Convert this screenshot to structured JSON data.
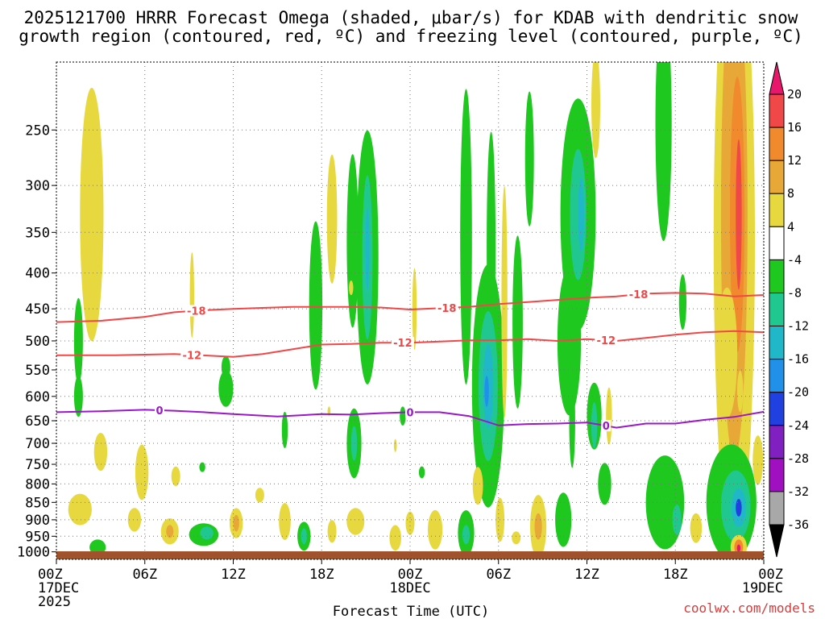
{
  "chart_data": {
    "type": "heatmap",
    "title_lines": [
      "2025121700 HRRR Forecast Omega (shaded, μbar/s) for KDAB with dendritic snow",
      "growth region (contoured, red, ºC) and freezing level (contoured, purple, ºC)"
    ],
    "xlabel": "Forecast Time (UTC)",
    "ylabel": "",
    "credit": "coolwx.com/models",
    "x_ticks": [
      {
        "hour": 0,
        "lines": [
          "00Z",
          "17DEC",
          "2025"
        ]
      },
      {
        "hour": 6,
        "lines": [
          "06Z"
        ]
      },
      {
        "hour": 12,
        "lines": [
          "12Z"
        ]
      },
      {
        "hour": 18,
        "lines": [
          "18Z"
        ]
      },
      {
        "hour": 24,
        "lines": [
          "00Z",
          "18DEC"
        ]
      },
      {
        "hour": 30,
        "lines": [
          "06Z"
        ]
      },
      {
        "hour": 36,
        "lines": [
          "12Z"
        ]
      },
      {
        "hour": 42,
        "lines": [
          "18Z"
        ]
      },
      {
        "hour": 48,
        "lines": [
          "00Z",
          "19DEC"
        ]
      }
    ],
    "xlim": [
      0,
      48
    ],
    "y_ticks": [
      250,
      300,
      350,
      400,
      450,
      500,
      550,
      600,
      650,
      700,
      750,
      800,
      850,
      900,
      950,
      1000
    ],
    "ylim_hpa": [
      1025,
      200
    ],
    "colorbar": {
      "labels": [
        20,
        16,
        12,
        8,
        4,
        -4,
        -8,
        -12,
        -16,
        -20,
        -24,
        -28,
        -32,
        -36
      ],
      "bins": [
        {
          "from": 20,
          "to": 24,
          "color": "#e8176b"
        },
        {
          "from": 16,
          "to": 20,
          "color": "#f04848"
        },
        {
          "from": 12,
          "to": 16,
          "color": "#f08a2c"
        },
        {
          "from": 8,
          "to": 12,
          "color": "#e8a838"
        },
        {
          "from": 4,
          "to": 8,
          "color": "#e8d840"
        },
        {
          "from": -4,
          "to": 4,
          "color": "#ffffff"
        },
        {
          "from": -8,
          "to": -4,
          "color": "#1ec81e"
        },
        {
          "from": -12,
          "to": -8,
          "color": "#20c890"
        },
        {
          "from": -16,
          "to": -12,
          "color": "#20b8c8"
        },
        {
          "from": -20,
          "to": -16,
          "color": "#2090e8"
        },
        {
          "from": -24,
          "to": -20,
          "color": "#2040e0"
        },
        {
          "from": -28,
          "to": -24,
          "color": "#8020c0"
        },
        {
          "from": -32,
          "to": -28,
          "color": "#a010c0"
        },
        {
          "from": -36,
          "to": -32,
          "color": "#a8a8a8"
        },
        {
          "from": -40,
          "to": -36,
          "color": "#000000"
        }
      ]
    },
    "contours": [
      {
        "name": "temp-contour-minus18",
        "value": -18,
        "label": "-18",
        "color": "#f04848",
        "points": [
          [
            0,
            470
          ],
          [
            3,
            468
          ],
          [
            6,
            462
          ],
          [
            8,
            455
          ],
          [
            10,
            452
          ],
          [
            12,
            450
          ],
          [
            16,
            447
          ],
          [
            20,
            447
          ],
          [
            22,
            448
          ],
          [
            24,
            451
          ],
          [
            28,
            447
          ],
          [
            30,
            443
          ],
          [
            32,
            440
          ],
          [
            34,
            437
          ],
          [
            36,
            434
          ],
          [
            38,
            432
          ],
          [
            40,
            428
          ],
          [
            42,
            427
          ],
          [
            44,
            428
          ],
          [
            46,
            432
          ],
          [
            48,
            430
          ]
        ],
        "label_hours": [
          9.5,
          26.5,
          39.5
        ]
      },
      {
        "name": "temp-contour-minus12",
        "value": -12,
        "label": "-12",
        "color": "#f04848",
        "points": [
          [
            0,
            524
          ],
          [
            4,
            524
          ],
          [
            8,
            522
          ],
          [
            12,
            527
          ],
          [
            14,
            522
          ],
          [
            16,
            514
          ],
          [
            18,
            506
          ],
          [
            20,
            505
          ],
          [
            22,
            503
          ],
          [
            24,
            503
          ],
          [
            28,
            499
          ],
          [
            30,
            499
          ],
          [
            32,
            497
          ],
          [
            34,
            500
          ],
          [
            36,
            497
          ],
          [
            38,
            500
          ],
          [
            40,
            495
          ],
          [
            42,
            490
          ],
          [
            44,
            486
          ],
          [
            46,
            484
          ],
          [
            48,
            486
          ]
        ],
        "label_hours": [
          9.2,
          23.5,
          37.3
        ]
      },
      {
        "name": "freezing-level-contour",
        "value": 0,
        "label": "0",
        "color": "#9a18c8",
        "points": [
          [
            0,
            632
          ],
          [
            3,
            630
          ],
          [
            6,
            627
          ],
          [
            8,
            629
          ],
          [
            10,
            632
          ],
          [
            12,
            636
          ],
          [
            15,
            641
          ],
          [
            18,
            636
          ],
          [
            20,
            637
          ],
          [
            22,
            634
          ],
          [
            24,
            632
          ],
          [
            26,
            632
          ],
          [
            28,
            640
          ],
          [
            30,
            660
          ],
          [
            32,
            657
          ],
          [
            34,
            656
          ],
          [
            36,
            654
          ],
          [
            37,
            659
          ],
          [
            38,
            665
          ],
          [
            40,
            656
          ],
          [
            42,
            656
          ],
          [
            44,
            648
          ],
          [
            46,
            642
          ],
          [
            48,
            631
          ]
        ],
        "label_hours": [
          7,
          24,
          37.3
        ]
      }
    ],
    "omega_features": [
      {
        "hour": 1.5,
        "hpa": 500,
        "dh": 0.3,
        "dp": 70,
        "value": -5
      },
      {
        "hour": 1.5,
        "hpa": 600,
        "dh": 0.3,
        "dp": 40,
        "value": -5
      },
      {
        "hour": 2.4,
        "hpa": 330,
        "dh": 0.8,
        "dp": 130,
        "value": 5
      },
      {
        "hour": 3.0,
        "hpa": 720,
        "dh": 0.45,
        "dp": 45,
        "value": 5
      },
      {
        "hour": 1.6,
        "hpa": 870,
        "dh": 0.8,
        "dp": 45,
        "value": 5
      },
      {
        "hour": 2.8,
        "hpa": 985,
        "dh": 0.55,
        "dp": 25,
        "value": -6
      },
      {
        "hour": 5.8,
        "hpa": 770,
        "dh": 0.45,
        "dp": 70,
        "value": 5
      },
      {
        "hour": 5.3,
        "hpa": 900,
        "dh": 0.45,
        "dp": 35,
        "value": 5
      },
      {
        "hour": 7.7,
        "hpa": 935,
        "dh": 0.6,
        "dp": 40,
        "value": 6
      },
      {
        "hour": 7.7,
        "hpa": 935,
        "dh": 0.25,
        "dp": 20,
        "value": 10
      },
      {
        "hour": 8.1,
        "hpa": 780,
        "dh": 0.3,
        "dp": 25,
        "value": 5
      },
      {
        "hour": 9.2,
        "hpa": 430,
        "dh": 0.15,
        "dp": 60,
        "value": 5
      },
      {
        "hour": 10.0,
        "hpa": 945,
        "dh": 1.0,
        "dp": 35,
        "value": -6
      },
      {
        "hour": 10.2,
        "hpa": 940,
        "dh": 0.45,
        "dp": 20,
        "value": -10
      },
      {
        "hour": 9.9,
        "hpa": 757,
        "dh": 0.2,
        "dp": 12,
        "value": -6
      },
      {
        "hour": 11.5,
        "hpa": 585,
        "dh": 0.5,
        "dp": 35,
        "value": -6
      },
      {
        "hour": 11.5,
        "hpa": 545,
        "dh": 0.3,
        "dp": 20,
        "value": -6
      },
      {
        "hour": 12.2,
        "hpa": 910,
        "dh": 0.45,
        "dp": 45,
        "value": 5
      },
      {
        "hour": 12.2,
        "hpa": 910,
        "dh": 0.2,
        "dp": 25,
        "value": 10
      },
      {
        "hour": 15.5,
        "hpa": 905,
        "dh": 0.4,
        "dp": 55,
        "value": 5
      },
      {
        "hour": 13.8,
        "hpa": 830,
        "dh": 0.3,
        "dp": 20,
        "value": 5
      },
      {
        "hour": 15.5,
        "hpa": 670,
        "dh": 0.2,
        "dp": 40,
        "value": -6
      },
      {
        "hour": 16.8,
        "hpa": 950,
        "dh": 0.45,
        "dp": 45,
        "value": -6
      },
      {
        "hour": 16.8,
        "hpa": 950,
        "dh": 0.2,
        "dp": 25,
        "value": -12
      },
      {
        "hour": 17.6,
        "hpa": 445,
        "dh": 0.45,
        "dp": 120,
        "value": -6
      },
      {
        "hour": 18.7,
        "hpa": 335,
        "dh": 0.35,
        "dp": 70,
        "value": 5
      },
      {
        "hour": 18.7,
        "hpa": 935,
        "dh": 0.3,
        "dp": 35,
        "value": 5
      },
      {
        "hour": 18.5,
        "hpa": 630,
        "dh": 0.1,
        "dp": 10,
        "value": 5
      },
      {
        "hour": 20.1,
        "hpa": 360,
        "dh": 0.4,
        "dp": 100,
        "value": -6
      },
      {
        "hour": 20.0,
        "hpa": 420,
        "dh": 0.15,
        "dp": 10,
        "value": 5
      },
      {
        "hour": 21.1,
        "hpa": 380,
        "dh": 0.75,
        "dp": 150,
        "value": -6
      },
      {
        "hour": 21.1,
        "hpa": 380,
        "dh": 0.35,
        "dp": 100,
        "value": -10
      },
      {
        "hour": 21.1,
        "hpa": 370,
        "dh": 0.15,
        "dp": 50,
        "value": -14
      },
      {
        "hour": 20.2,
        "hpa": 700,
        "dh": 0.5,
        "dp": 80,
        "value": -6
      },
      {
        "hour": 20.2,
        "hpa": 700,
        "dh": 0.2,
        "dp": 40,
        "value": -12
      },
      {
        "hour": 20.3,
        "hpa": 905,
        "dh": 0.6,
        "dp": 40,
        "value": 5
      },
      {
        "hour": 23.5,
        "hpa": 640,
        "dh": 0.2,
        "dp": 20,
        "value": -6
      },
      {
        "hour": 23.0,
        "hpa": 955,
        "dh": 0.4,
        "dp": 40,
        "value": 5
      },
      {
        "hour": 23.0,
        "hpa": 705,
        "dh": 0.1,
        "dp": 15,
        "value": 5
      },
      {
        "hour": 24.0,
        "hpa": 910,
        "dh": 0.3,
        "dp": 35,
        "value": 5
      },
      {
        "hour": 24.3,
        "hpa": 450,
        "dh": 0.15,
        "dp": 60,
        "value": 5
      },
      {
        "hour": 24.8,
        "hpa": 770,
        "dh": 0.2,
        "dp": 15,
        "value": -6
      },
      {
        "hour": 25.7,
        "hpa": 930,
        "dh": 0.5,
        "dp": 60,
        "value": 5
      },
      {
        "hour": 27.8,
        "hpa": 355,
        "dh": 0.4,
        "dp": 160,
        "value": -6
      },
      {
        "hour": 29.5,
        "hpa": 365,
        "dh": 0.3,
        "dp": 130,
        "value": -6
      },
      {
        "hour": 29.3,
        "hpa": 580,
        "dh": 1.1,
        "dp": 220,
        "value": -6
      },
      {
        "hour": 29.3,
        "hpa": 580,
        "dh": 0.65,
        "dp": 140,
        "value": -10
      },
      {
        "hour": 29.3,
        "hpa": 580,
        "dh": 0.35,
        "dp": 80,
        "value": -14
      },
      {
        "hour": 29.2,
        "hpa": 590,
        "dh": 0.15,
        "dp": 30,
        "value": -20
      },
      {
        "hour": 27.8,
        "hpa": 940,
        "dh": 0.55,
        "dp": 70,
        "value": -6
      },
      {
        "hour": 27.8,
        "hpa": 945,
        "dh": 0.25,
        "dp": 30,
        "value": -12
      },
      {
        "hour": 28.6,
        "hpa": 805,
        "dh": 0.35,
        "dp": 50,
        "value": 5
      },
      {
        "hour": 30.4,
        "hpa": 440,
        "dh": 0.2,
        "dp": 160,
        "value": 5
      },
      {
        "hour": 31.3,
        "hpa": 470,
        "dh": 0.35,
        "dp": 130,
        "value": -6
      },
      {
        "hour": 30.1,
        "hpa": 900,
        "dh": 0.3,
        "dp": 65,
        "value": 5
      },
      {
        "hour": 31.2,
        "hpa": 955,
        "dh": 0.3,
        "dp": 20,
        "value": 5
      },
      {
        "hour": 32.7,
        "hpa": 920,
        "dh": 0.55,
        "dp": 95,
        "value": 5
      },
      {
        "hour": 32.7,
        "hpa": 920,
        "dh": 0.25,
        "dp": 40,
        "value": 10
      },
      {
        "hour": 32.1,
        "hpa": 275,
        "dh": 0.3,
        "dp": 60,
        "value": -6
      },
      {
        "hour": 35.4,
        "hpa": 330,
        "dh": 1.2,
        "dp": 120,
        "value": -6
      },
      {
        "hour": 35.4,
        "hpa": 330,
        "dh": 0.55,
        "dp": 70,
        "value": -10
      },
      {
        "hour": 35.6,
        "hpa": 330,
        "dh": 0.2,
        "dp": 40,
        "value": -14
      },
      {
        "hour": 34.8,
        "hpa": 500,
        "dh": 0.8,
        "dp": 120,
        "value": -6
      },
      {
        "hour": 35.0,
        "hpa": 650,
        "dh": 0.2,
        "dp": 100,
        "value": -6
      },
      {
        "hour": 34.4,
        "hpa": 900,
        "dh": 0.55,
        "dp": 80,
        "value": -6
      },
      {
        "hour": 36.5,
        "hpa": 640,
        "dh": 0.5,
        "dp": 70,
        "value": -6
      },
      {
        "hour": 36.5,
        "hpa": 660,
        "dh": 0.2,
        "dp": 50,
        "value": -12
      },
      {
        "hour": 36.6,
        "hpa": 230,
        "dh": 0.3,
        "dp": 40,
        "value": 5
      },
      {
        "hour": 37.5,
        "hpa": 640,
        "dh": 0.2,
        "dp": 60,
        "value": 5
      },
      {
        "hour": 37.2,
        "hpa": 800,
        "dh": 0.45,
        "dp": 55,
        "value": -6
      },
      {
        "hour": 41.2,
        "hpa": 245,
        "dh": 0.55,
        "dp": 90,
        "value": -6
      },
      {
        "hour": 41.3,
        "hpa": 850,
        "dh": 1.3,
        "dp": 130,
        "value": -6
      },
      {
        "hour": 42.1,
        "hpa": 900,
        "dh": 0.3,
        "dp": 45,
        "value": -12
      },
      {
        "hour": 42.5,
        "hpa": 440,
        "dh": 0.25,
        "dp": 40,
        "value": -6
      },
      {
        "hour": 43.4,
        "hpa": 925,
        "dh": 0.4,
        "dp": 45,
        "value": 5
      },
      {
        "hour": 46.0,
        "hpa": 360,
        "dh": 1.4,
        "dp": 280,
        "value": 5
      },
      {
        "hour": 46.0,
        "hpa": 330,
        "dh": 0.9,
        "dp": 220,
        "value": 9
      },
      {
        "hour": 46.2,
        "hpa": 330,
        "dh": 0.5,
        "dp": 140,
        "value": 13
      },
      {
        "hour": 46.3,
        "hpa": 330,
        "dh": 0.2,
        "dp": 80,
        "value": 17
      },
      {
        "hour": 45.5,
        "hpa": 520,
        "dh": 0.7,
        "dp": 110,
        "value": 5
      },
      {
        "hour": 46.4,
        "hpa": 590,
        "dh": 0.2,
        "dp": 40,
        "value": 5
      },
      {
        "hour": 45.8,
        "hpa": 850,
        "dh": 1.7,
        "dp": 160,
        "value": -6
      },
      {
        "hour": 46.1,
        "hpa": 860,
        "dh": 1.0,
        "dp": 100,
        "value": -10
      },
      {
        "hour": 46.3,
        "hpa": 865,
        "dh": 0.5,
        "dp": 55,
        "value": -16
      },
      {
        "hour": 46.3,
        "hpa": 865,
        "dh": 0.2,
        "dp": 25,
        "value": -22
      },
      {
        "hour": 46.3,
        "hpa": 985,
        "dh": 0.55,
        "dp": 40,
        "value": 5
      },
      {
        "hour": 46.3,
        "hpa": 985,
        "dh": 0.3,
        "dp": 25,
        "value": 14
      },
      {
        "hour": 46.3,
        "hpa": 988,
        "dh": 0.12,
        "dp": 12,
        "value": 21
      },
      {
        "hour": 47.6,
        "hpa": 740,
        "dh": 0.35,
        "dp": 60,
        "value": 5
      }
    ]
  }
}
